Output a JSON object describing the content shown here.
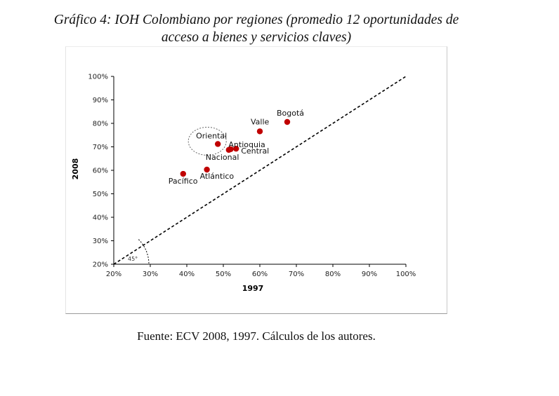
{
  "caption": {
    "line1": "Gráfico 4: IOH Colombiano por regiones (promedio 12 oportunidades de",
    "line2": "acceso a bienes y servicios claves)"
  },
  "source": "Fuente: ECV 2008, 1997. Cálculos de los autores.",
  "colors": {
    "point": "#c00000",
    "axis": "#000000",
    "grid": "#d9d9d9"
  },
  "chart_data": {
    "type": "scatter",
    "title": "IOH Colombiano por regiones",
    "xlabel": "1997",
    "ylabel": "2008",
    "xlim": [
      0.2,
      1.0
    ],
    "ylim": [
      0.2,
      1.0
    ],
    "xticks": [
      "20%",
      "30%",
      "40%",
      "50%",
      "60%",
      "70%",
      "80%",
      "90%",
      "100%"
    ],
    "yticks": [
      "20%",
      "30%",
      "40%",
      "50%",
      "60%",
      "70%",
      "80%",
      "90%",
      "100%"
    ],
    "points": [
      {
        "label": "Bogotá",
        "x": 0.675,
        "y": 0.806
      },
      {
        "label": "Valle",
        "x": 0.6,
        "y": 0.766
      },
      {
        "label": "Oriental",
        "x": 0.485,
        "y": 0.712
      },
      {
        "label": "Antioquia",
        "x": 0.52,
        "y": 0.69
      },
      {
        "label": "Central",
        "x": 0.535,
        "y": 0.692
      },
      {
        "label": "Nacional",
        "x": 0.515,
        "y": 0.687
      },
      {
        "label": "Atlántico",
        "x": 0.455,
        "y": 0.603
      },
      {
        "label": "Pacífico",
        "x": 0.39,
        "y": 0.585
      }
    ],
    "reference_line": {
      "from": [
        0.2,
        0.2
      ],
      "to": [
        1.0,
        1.0
      ],
      "style": "dashed",
      "angle_label": "45°"
    },
    "highlight": {
      "label": "Oriental",
      "style": "dotted-ellipse"
    }
  }
}
